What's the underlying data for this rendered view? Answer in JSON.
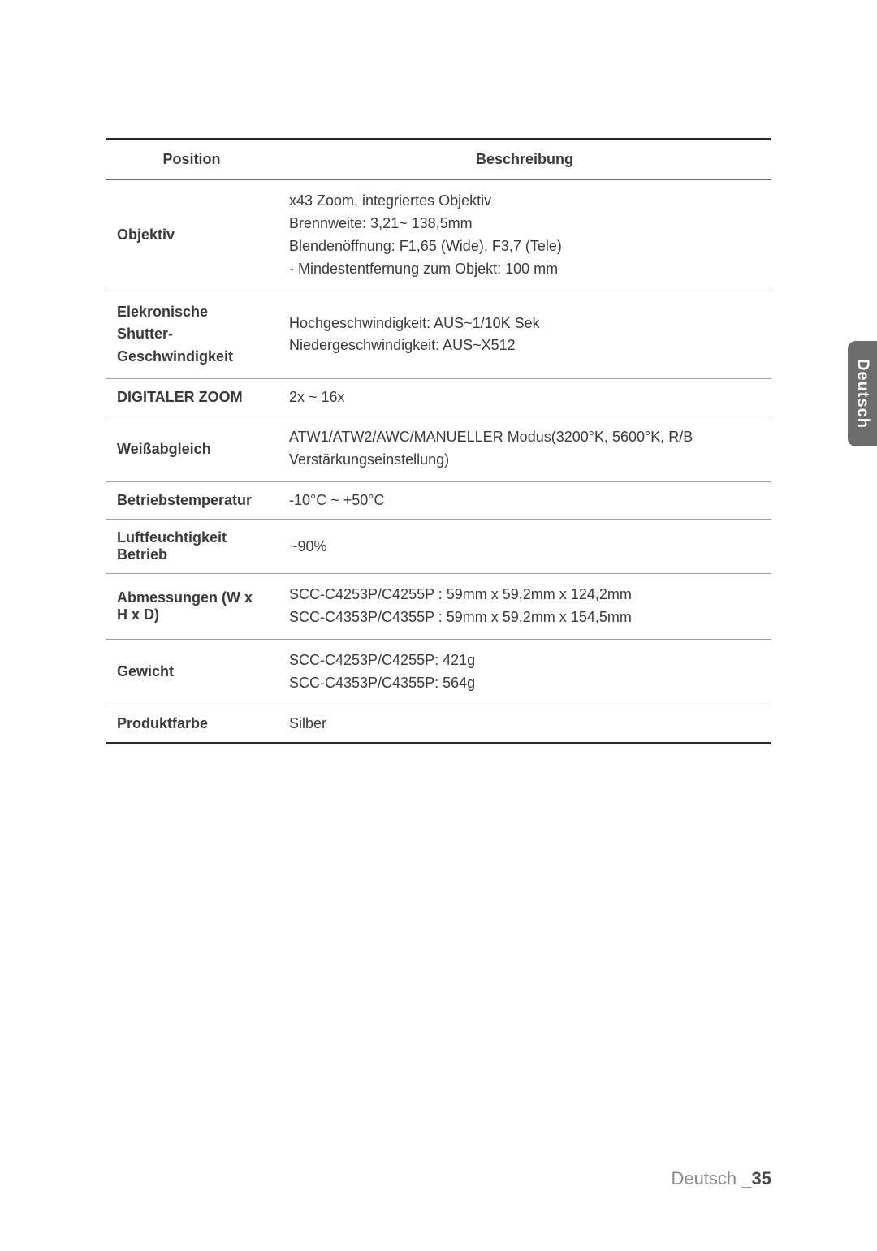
{
  "table": {
    "headers": {
      "position": "Position",
      "description": "Beschreibung"
    },
    "rows": [
      {
        "label": "Objektiv",
        "lines": [
          "x43 Zoom, integriertes Objektiv",
          "Brennweite: 3,21~ 138,5mm",
          "Blendenöffnung: F1,65 (Wide), F3,7 (Tele)",
          "- Mindestentfernung zum Objekt: 100 mm"
        ]
      },
      {
        "label_lines": [
          "Elekronische Shutter-",
          "Geschwindigkeit"
        ],
        "lines": [
          "Hochgeschwindigkeit: AUS~1/10K Sek",
          "Niedergeschwindigkeit: AUS~X512"
        ]
      },
      {
        "label": "DIGITALER ZOOM",
        "value": "2x ~ 16x"
      },
      {
        "label": "Weißabgleich",
        "lines": [
          "ATW1/ATW2/AWC/MANUELLER Modus(3200°K, 5600°K, R/B",
          "Verstärkungseinstellung)"
        ]
      },
      {
        "label": "Betriebstemperatur",
        "value": "-10°C ~ +50°C"
      },
      {
        "label": "Luftfeuchtigkeit Betrieb",
        "value": "~90%"
      },
      {
        "label": "Abmessungen (W x H x D)",
        "lines": [
          "SCC-C4253P/C4255P : 59mm x 59,2mm x 124,2mm",
          "SCC-C4353P/C4355P : 59mm x 59,2mm x 154,5mm"
        ]
      },
      {
        "label": "Gewicht",
        "lines": [
          "SCC-C4253P/C4255P: 421g",
          "SCC-C4353P/C4355P: 564g"
        ]
      },
      {
        "label": "Produktfarbe",
        "value": "Silber"
      }
    ]
  },
  "side_tab": "Deutsch",
  "footer": {
    "lang": "Deutsch _",
    "page": "35"
  },
  "colors": {
    "border_strong": "#2a2a2a",
    "border_mid": "#6a6a6a",
    "border_row": "#a0a0a0",
    "tab_bg": "#6c6c6c",
    "text": "#3a3a3a",
    "footer_text": "#8a8a8a",
    "footer_num": "#4a4a4a"
  }
}
